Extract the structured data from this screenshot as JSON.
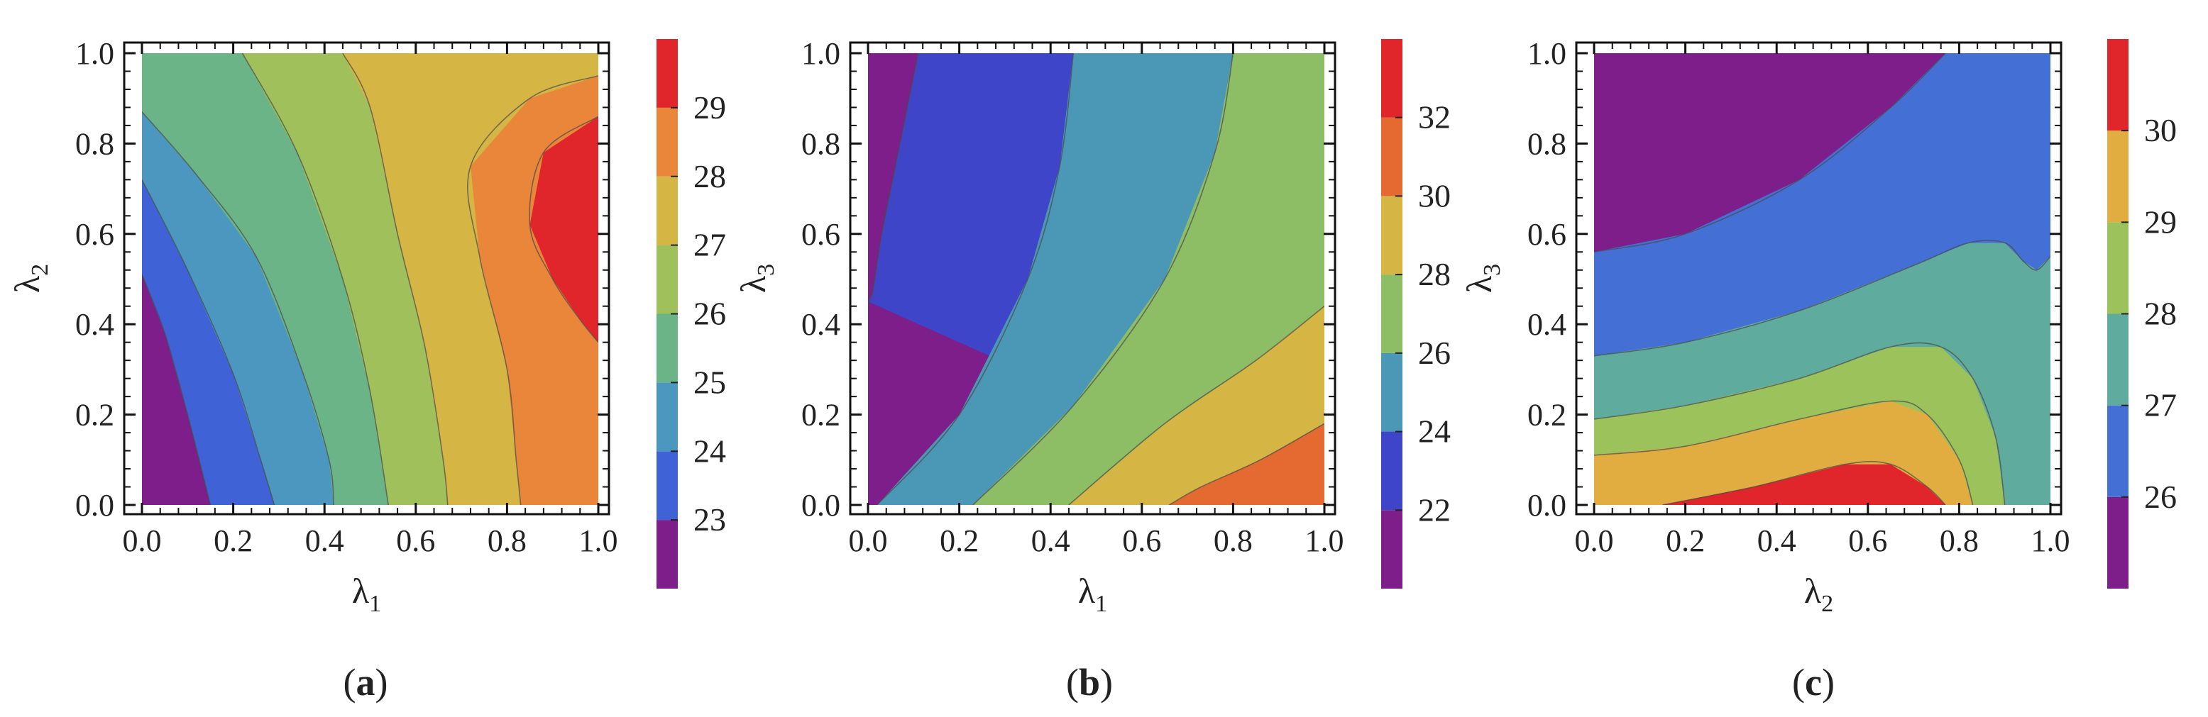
{
  "chart_data": [
    {
      "type": "heatmap",
      "subtype": "filled-contour",
      "caption": "(a)",
      "caption_letter": "a",
      "xlabel": "λ1",
      "ylabel": "λ2",
      "xlim": [
        0,
        1
      ],
      "ylim": [
        0,
        1
      ],
      "x_ticks": [
        "0.0",
        "0.2",
        "0.4",
        "0.6",
        "0.8",
        "1.0"
      ],
      "y_ticks": [
        "0.0",
        "0.2",
        "0.4",
        "0.6",
        "0.8",
        "1.0"
      ],
      "colorbar": {
        "levels": [
          22,
          23,
          24,
          25,
          26,
          27,
          28,
          29,
          30
        ],
        "tick_labels": [
          "23",
          "24",
          "25",
          "26",
          "27",
          "28",
          "29"
        ],
        "tick_values": [
          23,
          24,
          25,
          26,
          27,
          28,
          29
        ],
        "colors": [
          "#7d1e8a",
          "#3f63d6",
          "#4b97c0",
          "#6ab488",
          "#9fc05a",
          "#d5b544",
          "#e9863a",
          "#e0262a"
        ]
      },
      "contour_boundaries": [
        {
          "level": 23,
          "points": [
            [
              0,
              0.51
            ],
            [
              0.05,
              0.38
            ],
            [
              0.1,
              0.2
            ],
            [
              0.15,
              0
            ]
          ]
        },
        {
          "level": 24,
          "points": [
            [
              0,
              0.72
            ],
            [
              0.1,
              0.52
            ],
            [
              0.2,
              0.29
            ],
            [
              0.26,
              0.1
            ],
            [
              0.29,
              0
            ]
          ]
        },
        {
          "level": 25,
          "points": [
            [
              0,
              0.87
            ],
            [
              0.12,
              0.73
            ],
            [
              0.25,
              0.55
            ],
            [
              0.35,
              0.3
            ],
            [
              0.41,
              0.1
            ],
            [
              0.42,
              0
            ]
          ]
        },
        {
          "level": 26,
          "points": [
            [
              0.22,
              1
            ],
            [
              0.34,
              0.78
            ],
            [
              0.44,
              0.5
            ],
            [
              0.5,
              0.25
            ],
            [
              0.54,
              0
            ]
          ]
        },
        {
          "level": 27,
          "points": [
            [
              0.44,
              1
            ],
            [
              0.5,
              0.88
            ],
            [
              0.56,
              0.6
            ],
            [
              0.62,
              0.35
            ],
            [
              0.66,
              0.1
            ],
            [
              0.67,
              0
            ]
          ]
        },
        {
          "level": 28,
          "points": [
            [
              1,
              0.95
            ],
            [
              0.85,
              0.9
            ],
            [
              0.72,
              0.75
            ],
            [
              0.74,
              0.55
            ],
            [
              0.8,
              0.3
            ],
            [
              0.82,
              0.1
            ],
            [
              0.83,
              0
            ]
          ]
        },
        {
          "level": 29,
          "points": [
            [
              1,
              0.86
            ],
            [
              0.88,
              0.78
            ],
            [
              0.85,
              0.62
            ],
            [
              0.9,
              0.5
            ],
            [
              0.96,
              0.41
            ],
            [
              1,
              0.36
            ]
          ]
        }
      ]
    },
    {
      "type": "heatmap",
      "subtype": "filled-contour",
      "caption": "(b)",
      "caption_letter": "b",
      "xlabel": "λ1",
      "ylabel": "λ3",
      "xlim": [
        0,
        1
      ],
      "ylim": [
        0,
        1
      ],
      "x_ticks": [
        "0.0",
        "0.2",
        "0.4",
        "0.6",
        "0.8",
        "1.0"
      ],
      "y_ticks": [
        "0.0",
        "0.2",
        "0.4",
        "0.6",
        "0.8",
        "1.0"
      ],
      "colorbar": {
        "levels": [
          20,
          22,
          24,
          26,
          28,
          30,
          32,
          34
        ],
        "tick_labels": [
          "22",
          "24",
          "26",
          "28",
          "30",
          "32"
        ],
        "tick_values": [
          22,
          24,
          26,
          28,
          30,
          32
        ],
        "colors": [
          "#7d1e8a",
          "#3f45c9",
          "#4b97b6",
          "#8dbd64",
          "#d5b544",
          "#e56a32",
          "#e0262a"
        ]
      },
      "contour_boundaries": [
        {
          "level": 22,
          "points": [
            [
              0.11,
              1
            ],
            [
              0.06,
              0.75
            ],
            [
              0.03,
              0.6
            ],
            [
              0.01,
              0.47
            ],
            [
              0,
              0.45
            ]
          ]
        },
        {
          "level": 24,
          "points": [
            [
              0.45,
              1
            ],
            [
              0.42,
              0.75
            ],
            [
              0.35,
              0.5
            ],
            [
              0.2,
              0.2
            ],
            [
              0.02,
              0
            ]
          ]
        },
        {
          "level": 26,
          "points": [
            [
              0.8,
              1
            ],
            [
              0.76,
              0.78
            ],
            [
              0.65,
              0.5
            ],
            [
              0.45,
              0.22
            ],
            [
              0.23,
              0
            ]
          ]
        },
        {
          "level": 28,
          "points": [
            [
              1,
              0.44
            ],
            [
              0.85,
              0.32
            ],
            [
              0.65,
              0.18
            ],
            [
              0.44,
              0
            ]
          ]
        },
        {
          "level": 30,
          "points": [
            [
              1,
              0.18
            ],
            [
              0.86,
              0.1
            ],
            [
              0.73,
              0.04
            ],
            [
              0.66,
              0
            ]
          ]
        }
      ]
    },
    {
      "type": "heatmap",
      "subtype": "filled-contour",
      "caption": "(c)",
      "caption_letter": "c",
      "xlabel": "λ2",
      "ylabel": "λ3",
      "xlim": [
        0,
        1
      ],
      "ylim": [
        0,
        1
      ],
      "x_ticks": [
        "0.0",
        "0.2",
        "0.4",
        "0.6",
        "0.8",
        "1.0"
      ],
      "y_ticks": [
        "0.0",
        "0.2",
        "0.4",
        "0.6",
        "0.8",
        "1.0"
      ],
      "colorbar": {
        "levels": [
          25,
          26,
          27,
          28,
          29,
          30,
          31
        ],
        "tick_labels": [
          "26",
          "27",
          "28",
          "29",
          "30"
        ],
        "tick_values": [
          26,
          27,
          28,
          29,
          30
        ],
        "colors": [
          "#7d1e8a",
          "#4470d6",
          "#5fac9e",
          "#9cc25c",
          "#e1ad40",
          "#e0262a"
        ]
      },
      "contour_boundaries": [
        {
          "level": 26,
          "points": [
            [
              0,
              0.56
            ],
            [
              0.2,
              0.6
            ],
            [
              0.45,
              0.72
            ],
            [
              0.65,
              0.88
            ],
            [
              0.77,
              1
            ]
          ]
        },
        {
          "level": 27,
          "points": [
            [
              0,
              0.33
            ],
            [
              0.2,
              0.36
            ],
            [
              0.45,
              0.43
            ],
            [
              0.7,
              0.53
            ],
            [
              0.82,
              0.58
            ],
            [
              0.9,
              0.58
            ],
            [
              0.94,
              0.54
            ],
            [
              0.97,
              0.52
            ],
            [
              1,
              0.55
            ]
          ]
        },
        {
          "level": 28,
          "points": [
            [
              0,
              0.19
            ],
            [
              0.2,
              0.22
            ],
            [
              0.45,
              0.28
            ],
            [
              0.65,
              0.35
            ],
            [
              0.76,
              0.35
            ],
            [
              0.83,
              0.28
            ],
            [
              0.88,
              0.15
            ],
            [
              0.9,
              0
            ]
          ]
        },
        {
          "level": 29,
          "points": [
            [
              0,
              0.11
            ],
            [
              0.2,
              0.13
            ],
            [
              0.45,
              0.19
            ],
            [
              0.65,
              0.23
            ],
            [
              0.73,
              0.2
            ],
            [
              0.8,
              0.1
            ],
            [
              0.83,
              0
            ]
          ]
        },
        {
          "level": 30,
          "points": [
            [
              0.15,
              0
            ],
            [
              0.35,
              0.04
            ],
            [
              0.55,
              0.09
            ],
            [
              0.65,
              0.09
            ],
            [
              0.73,
              0.04
            ],
            [
              0.77,
              0
            ]
          ]
        }
      ]
    }
  ]
}
